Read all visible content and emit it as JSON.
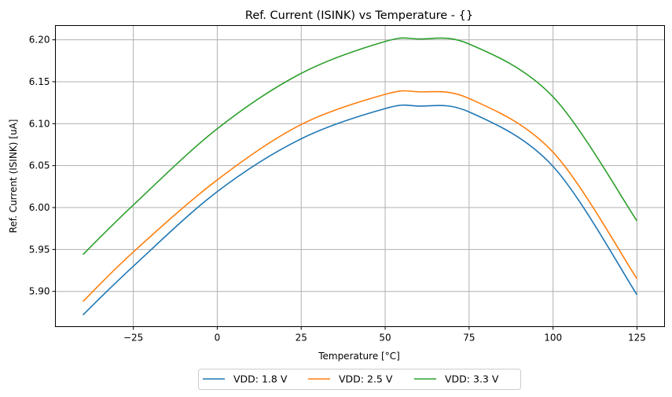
{
  "chart_data": {
    "type": "line",
    "title": "Ref. Current (ISINK) vs Temperature - {}",
    "xlabel": "Temperature [°C]",
    "ylabel": "Ref. Current (ISINK) [uA]",
    "xlim": [
      -48.2,
      133.2
    ],
    "ylim": [
      5.858,
      6.217
    ],
    "xticks": [
      -25,
      0,
      25,
      50,
      75,
      100,
      125
    ],
    "yticks": [
      5.9,
      5.95,
      6.0,
      6.05,
      6.1,
      6.15,
      6.2
    ],
    "ytick_labels": [
      "5.90",
      "5.95",
      "6.00",
      "6.05",
      "6.10",
      "6.15",
      "6.20"
    ],
    "grid": true,
    "legend_position": "bottom-center",
    "x": [
      -40,
      -25,
      0,
      25,
      50,
      60,
      75,
      100,
      125
    ],
    "series": [
      {
        "name": "VDD: 1.8 V",
        "color": "#1f77b4",
        "values": [
          5.872,
          5.93,
          6.019,
          6.082,
          6.118,
          6.121,
          6.114,
          6.049,
          5.896
        ]
      },
      {
        "name": "VDD: 2.5 V",
        "color": "#ff7f0e",
        "values": [
          5.888,
          5.947,
          6.033,
          6.099,
          6.135,
          6.138,
          6.13,
          6.066,
          5.915
        ]
      },
      {
        "name": "VDD: 3.3 V",
        "color": "#2ca02c",
        "values": [
          5.944,
          6.003,
          6.094,
          6.16,
          6.198,
          6.201,
          6.195,
          6.132,
          5.984
        ]
      }
    ]
  }
}
